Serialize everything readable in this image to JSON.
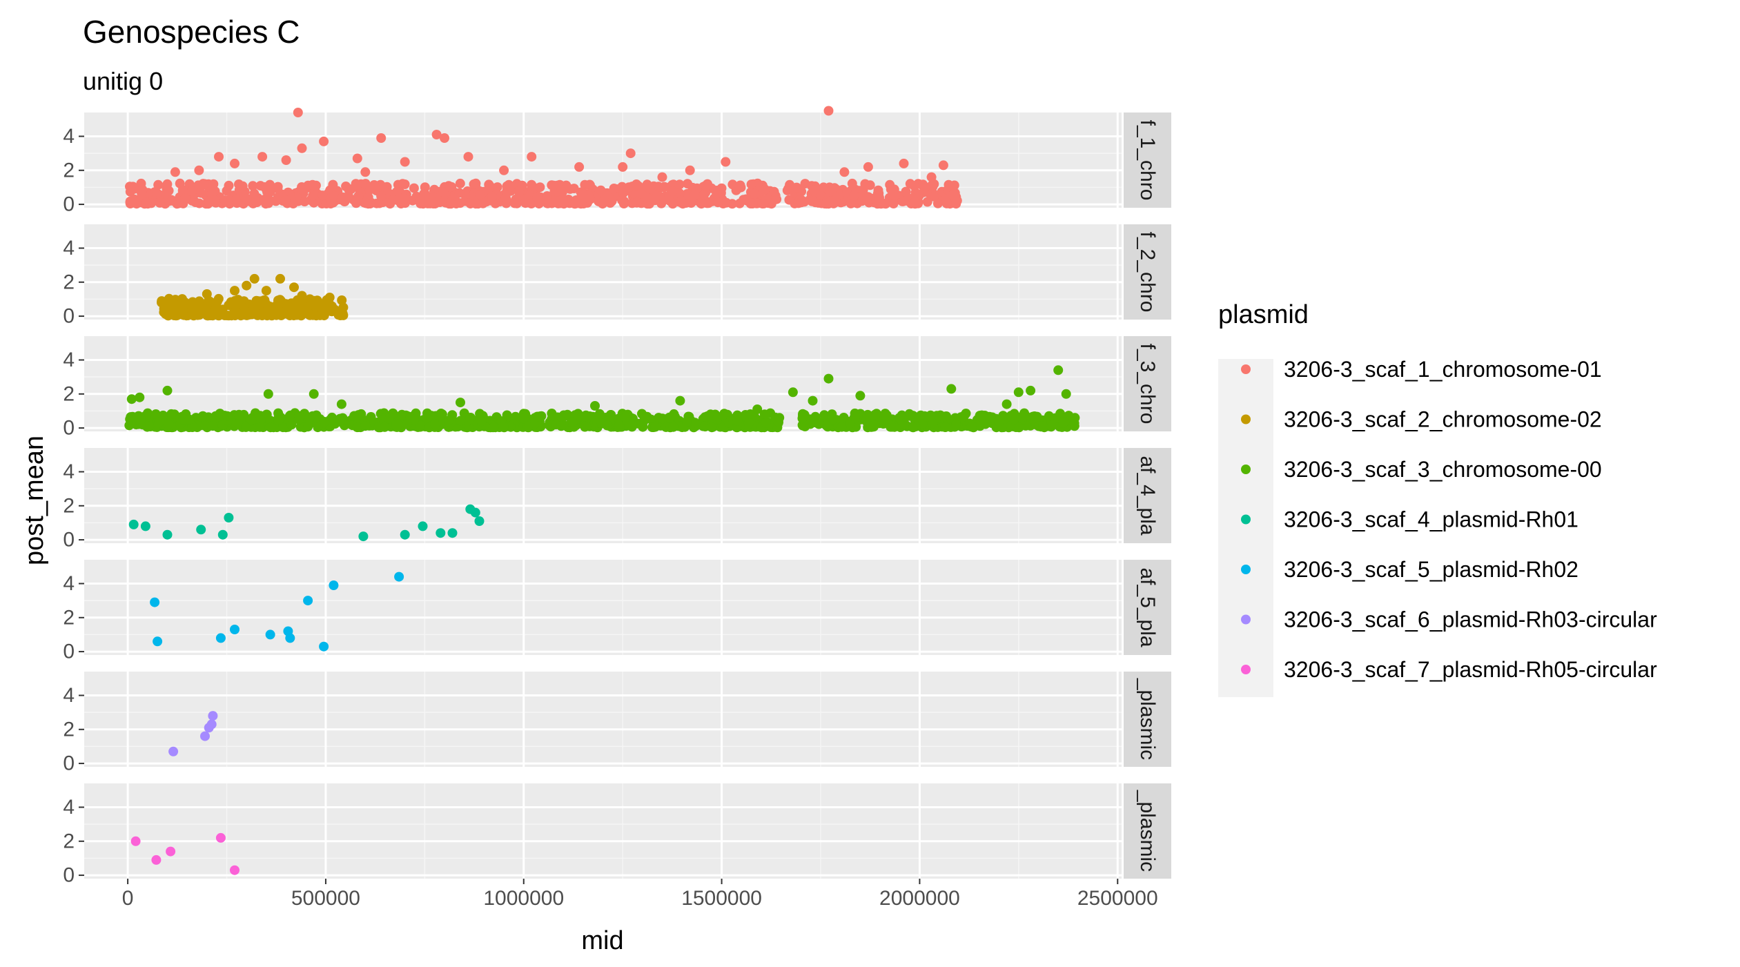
{
  "chart_data": {
    "type": "scatter",
    "title": "Genospecies C",
    "subtitle": "unitig 0",
    "xlabel": "mid",
    "ylabel": "post_mean",
    "xlim": [
      -110000,
      2510000
    ],
    "ylim": [
      -0.2,
      5.4
    ],
    "x_ticks": [
      0,
      500000,
      1000000,
      1500000,
      2000000,
      2500000
    ],
    "x_tick_labels": [
      "0",
      "500000",
      "1000000",
      "1500000",
      "2000000",
      "2500000"
    ],
    "y_ticks": [
      0,
      2,
      4
    ],
    "y_tick_labels": [
      "0",
      "2",
      "4"
    ],
    "grid": true,
    "facet_by": "plasmid",
    "legend": {
      "title": "plasmid",
      "position": "right"
    },
    "series": [
      {
        "name": "3206-3_scaf_1_chromosome-01",
        "strip_label": "f_1_chro",
        "color": "#F8766D",
        "dense": {
          "x_start": 5000,
          "x_end": 2095000,
          "n": 900,
          "base_max": 1.2,
          "gap": [
            1640000,
            1665000
          ],
          "seed": 11
        },
        "points": [
          [
            430000,
            5.4
          ],
          [
            1770000,
            5.5
          ],
          [
            440000,
            3.3
          ],
          [
            495000,
            3.7
          ],
          [
            640000,
            3.9
          ],
          [
            780000,
            4.1
          ],
          [
            800000,
            3.9
          ],
          [
            1270000,
            3.0
          ],
          [
            1510000,
            2.5
          ],
          [
            2060000,
            2.3
          ],
          [
            230000,
            2.8
          ],
          [
            340000,
            2.8
          ],
          [
            270000,
            2.4
          ],
          [
            400000,
            2.6
          ],
          [
            580000,
            2.7
          ],
          [
            700000,
            2.5
          ],
          [
            860000,
            2.8
          ],
          [
            1020000,
            2.8
          ],
          [
            1140000,
            2.2
          ],
          [
            1250000,
            2.2
          ],
          [
            1420000,
            2.0
          ],
          [
            1960000,
            2.4
          ],
          [
            1870000,
            2.2
          ],
          [
            1810000,
            1.9
          ],
          [
            2030000,
            1.6
          ],
          [
            120000,
            1.9
          ],
          [
            180000,
            2.0
          ],
          [
            600000,
            1.9
          ],
          [
            950000,
            2.0
          ],
          [
            1350000,
            1.6
          ]
        ]
      },
      {
        "name": "3206-3_scaf_2_chromosome-02",
        "strip_label": "f_2_chro",
        "color": "#C49A00",
        "dense": {
          "x_start": 85000,
          "x_end": 545000,
          "n": 260,
          "base_max": 1.0,
          "seed": 23
        },
        "points": [
          [
            320000,
            2.2
          ],
          [
            385000,
            2.2
          ],
          [
            300000,
            1.8
          ],
          [
            270000,
            1.5
          ],
          [
            420000,
            1.7
          ],
          [
            440000,
            1.2
          ],
          [
            510000,
            1.1
          ],
          [
            200000,
            1.3
          ],
          [
            350000,
            1.5
          ],
          [
            460000,
            1.0
          ]
        ]
      },
      {
        "name": "3206-3_scaf_3_chromosome-00",
        "strip_label": "f_3_chro",
        "color": "#53B400",
        "dense": {
          "x_start": 0,
          "x_end": 2395000,
          "n": 1000,
          "base_max": 0.85,
          "gap": [
            1650000,
            1700000
          ],
          "seed": 37
        },
        "points": [
          [
            2350000,
            3.4
          ],
          [
            1770000,
            2.9
          ],
          [
            100000,
            2.2
          ],
          [
            355000,
            2.0
          ],
          [
            470000,
            2.0
          ],
          [
            1680000,
            2.1
          ],
          [
            1850000,
            1.9
          ],
          [
            2080000,
            2.3
          ],
          [
            2280000,
            2.2
          ],
          [
            2250000,
            2.1
          ],
          [
            2370000,
            2.0
          ],
          [
            10000,
            1.7
          ],
          [
            30000,
            1.8
          ],
          [
            1395000,
            1.6
          ],
          [
            840000,
            1.5
          ],
          [
            1730000,
            1.6
          ],
          [
            540000,
            1.4
          ],
          [
            1180000,
            1.3
          ],
          [
            2220000,
            1.4
          ],
          [
            1590000,
            1.1
          ]
        ]
      },
      {
        "name": "3206-3_scaf_4_plasmid-Rh01",
        "strip_label": "af_4_pla",
        "color": "#00C094",
        "points": [
          [
            15000,
            0.9
          ],
          [
            45000,
            0.8
          ],
          [
            100000,
            0.3
          ],
          [
            185000,
            0.6
          ],
          [
            240000,
            0.3
          ],
          [
            255000,
            1.3
          ],
          [
            595000,
            0.2
          ],
          [
            700000,
            0.3
          ],
          [
            745000,
            0.8
          ],
          [
            790000,
            0.4
          ],
          [
            820000,
            0.4
          ],
          [
            865000,
            1.8
          ],
          [
            878000,
            1.6
          ],
          [
            888000,
            1.1
          ]
        ]
      },
      {
        "name": "3206-3_scaf_5_plasmid-Rh02",
        "strip_label": "af_5_pla",
        "color": "#00B6EB",
        "points": [
          [
            68000,
            2.9
          ],
          [
            75000,
            0.6
          ],
          [
            235000,
            0.8
          ],
          [
            270000,
            1.3
          ],
          [
            360000,
            1.0
          ],
          [
            405000,
            1.2
          ],
          [
            410000,
            0.8
          ],
          [
            455000,
            3.0
          ],
          [
            495000,
            0.3
          ],
          [
            520000,
            3.9
          ],
          [
            685000,
            4.4
          ]
        ]
      },
      {
        "name": "3206-3_scaf_6_plasmid-Rh03-circular",
        "strip_label": "_plasmic",
        "color": "#A58AFF",
        "points": [
          [
            115000,
            0.7
          ],
          [
            195000,
            1.6
          ],
          [
            205000,
            2.1
          ],
          [
            212000,
            2.3
          ],
          [
            215000,
            2.8
          ]
        ]
      },
      {
        "name": "3206-3_scaf_7_plasmid-Rh05-circular",
        "strip_label": "_plasmic",
        "color": "#FB61D7",
        "points": [
          [
            20000,
            2.0
          ],
          [
            72000,
            0.9
          ],
          [
            108000,
            1.4
          ],
          [
            235000,
            2.2
          ],
          [
            270000,
            0.3
          ]
        ]
      }
    ]
  }
}
